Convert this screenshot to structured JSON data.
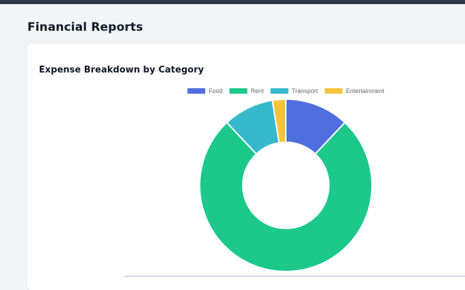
{
  "page": {
    "title": "Financial Reports"
  },
  "chart_data": {
    "type": "pie",
    "variant": "doughnut",
    "title": "Expense Breakdown by Category",
    "categories": [
      "Food",
      "Rent",
      "Transport",
      "Entertainment"
    ],
    "values": [
      12,
      76,
      9.5,
      2.5
    ],
    "colors": [
      "#4f6fde",
      "#1cc98a",
      "#37b9cc",
      "#f6c33c"
    ],
    "legend_position": "top"
  }
}
